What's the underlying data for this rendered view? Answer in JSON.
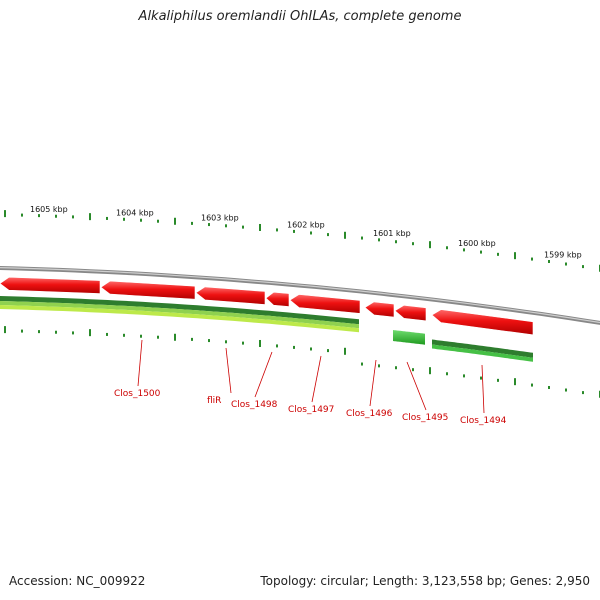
{
  "title": "Alkaliphilus oremlandii OhILAs, complete genome",
  "footer": {
    "accession": "Accession: NC_009922",
    "stats": "Topology: circular; Length: 3,123,558 bp; Genes: 2,950"
  },
  "colors": {
    "forward_gene": "#ee1111",
    "backbone": "#888888",
    "ticks": "#2a8a2a",
    "label": "#cc0000",
    "green_band": "#3fa83f",
    "light_green_band": "#bde94a"
  },
  "position_labels": [
    "1605 kbp",
    "1604 kbp",
    "1603 kbp",
    "1602 kbp",
    "1601 kbp",
    "1600 kbp",
    "1599 kbp"
  ],
  "genes": [
    {
      "name": "Clos_1500"
    },
    {
      "name": "fliR"
    },
    {
      "name": "Clos_1498"
    },
    {
      "name": "Clos_1497"
    },
    {
      "name": "Clos_1496"
    },
    {
      "name": "Clos_1495"
    },
    {
      "name": "Clos_1494"
    }
  ]
}
